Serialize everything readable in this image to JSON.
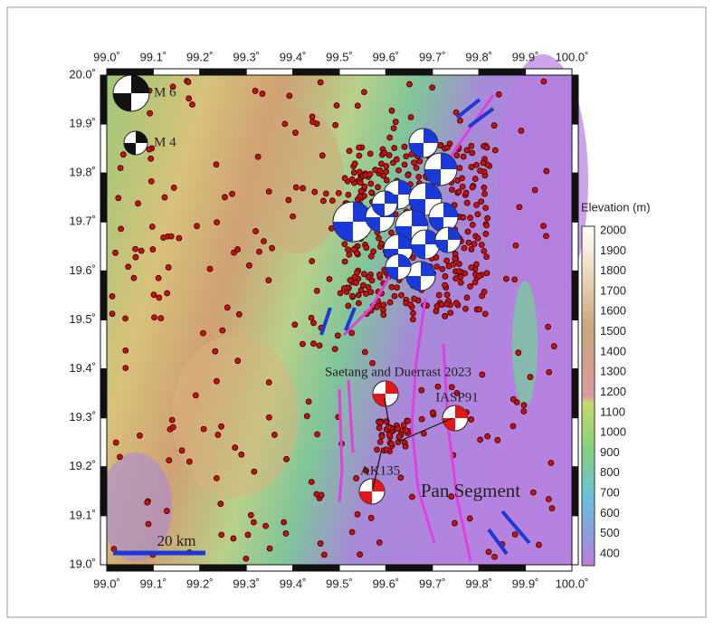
{
  "map": {
    "x_labels": [
      "99.0˚",
      "99.1˚",
      "99.2˚",
      "99.3˚",
      "99.4˚",
      "99.5˚",
      "99.6˚",
      "99.7˚",
      "99.8˚",
      "99.9˚",
      "100.0˚"
    ],
    "y_labels": [
      "20.0˚",
      "19.9˚",
      "19.8˚",
      "19.7˚",
      "19.6˚",
      "19.5˚",
      "19.4˚",
      "19.3˚",
      "19.2˚",
      "19.1˚",
      "19.0˚"
    ],
    "legend": [
      "M 6",
      "M 4"
    ],
    "annotations": [
      "Saetang and Duerrast 2023",
      "IASP91",
      "AK135",
      "Pan Segment"
    ],
    "scale_bar": "20 km"
  },
  "colorbar": {
    "title": "Elevation (m)",
    "labels": [
      2000,
      1900,
      1800,
      1700,
      1600,
      1500,
      1400,
      1300,
      1200,
      1100,
      1000,
      900,
      800,
      700,
      600,
      500,
      400
    ]
  }
}
